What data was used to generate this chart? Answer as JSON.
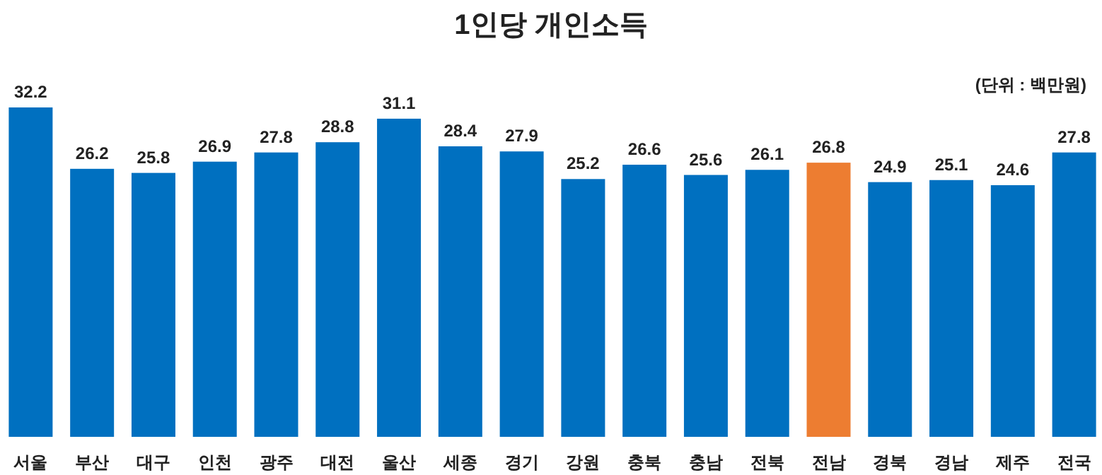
{
  "chart_data": {
    "type": "bar",
    "title": "1인당 개인소득",
    "annotations": [
      "(단위 : 백만원)"
    ],
    "categories": [
      "서울",
      "부산",
      "대구",
      "인천",
      "광주",
      "대전",
      "울산",
      "세종",
      "경기",
      "강원",
      "충북",
      "충남",
      "전북",
      "전남",
      "경북",
      "경남",
      "제주",
      "전국"
    ],
    "values": [
      32.2,
      26.2,
      25.8,
      26.9,
      27.8,
      28.8,
      31.1,
      28.4,
      27.9,
      25.2,
      26.6,
      25.6,
      26.1,
      26.8,
      24.9,
      25.1,
      24.6,
      27.8
    ],
    "colors": [
      "#0070c0",
      "#0070c0",
      "#0070c0",
      "#0070c0",
      "#0070c0",
      "#0070c0",
      "#0070c0",
      "#0070c0",
      "#0070c0",
      "#0070c0",
      "#0070c0",
      "#0070c0",
      "#0070c0",
      "#ed7d31",
      "#0070c0",
      "#0070c0",
      "#0070c0",
      "#0070c0"
    ],
    "data_labels": true
  }
}
